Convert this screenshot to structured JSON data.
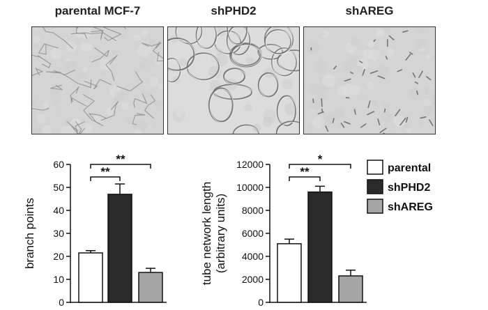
{
  "panels": [
    {
      "title": "parental MCF-7",
      "texture": "sparse"
    },
    {
      "title": "shPHD2",
      "texture": "dense"
    },
    {
      "title": "shAREG",
      "texture": "fragmented"
    }
  ],
  "legend": {
    "placement": "right",
    "entries": [
      {
        "name": "parental",
        "color": "#ffffff"
      },
      {
        "name": "shPHD2",
        "color": "#2b2b2b"
      },
      {
        "name": "shAREG",
        "color": "#a6a6a6"
      }
    ]
  },
  "chart_data": [
    {
      "type": "bar",
      "title": "",
      "ylabel": "branch points",
      "ylim": [
        0,
        60
      ],
      "yticks": [
        "0",
        "10",
        "20",
        "30",
        "40",
        "50",
        "60"
      ],
      "categories": [
        "parental",
        "shPHD2",
        "shAREG"
      ],
      "values": [
        21.5,
        47,
        13
      ],
      "errors": [
        1,
        4.5,
        1.8
      ],
      "colors": [
        "#ffffff",
        "#2b2b2b",
        "#a6a6a6"
      ],
      "significance": [
        {
          "from": 0,
          "to": 1,
          "label": "**",
          "level": 55
        },
        {
          "from": 0,
          "to": 2,
          "label": "**",
          "level": 60
        }
      ]
    },
    {
      "type": "bar",
      "title": "",
      "ylabel": "tube network length",
      "ylabel2": "(arbitrary units)",
      "ylim": [
        0,
        12000
      ],
      "yticks": [
        "0",
        "2000",
        "4000",
        "6000",
        "8000",
        "10000",
        "12000"
      ],
      "categories": [
        "parental",
        "shPHD2",
        "shAREG"
      ],
      "values": [
        5100,
        9600,
        2300
      ],
      "errors": [
        400,
        500,
        500
      ],
      "colors": [
        "#ffffff",
        "#2b2b2b",
        "#a6a6a6"
      ],
      "significance": [
        {
          "from": 0,
          "to": 1,
          "label": "**",
          "level": 11000
        },
        {
          "from": 0,
          "to": 2,
          "label": "*",
          "level": 12000
        }
      ]
    }
  ]
}
